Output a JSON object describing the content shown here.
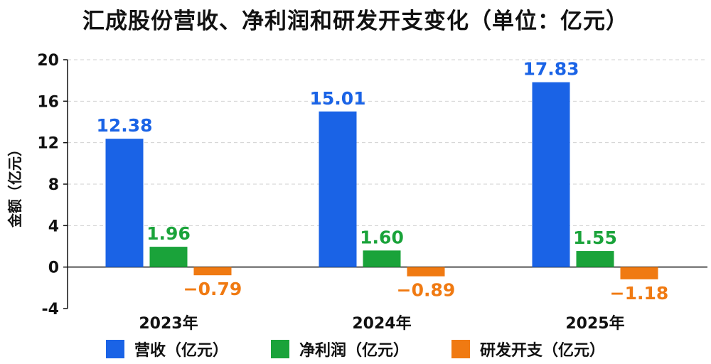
{
  "chart_data": {
    "type": "bar",
    "title": "汇成股份营收、净利润和研发开支变化（单位：亿元）",
    "ylabel": "金额（亿元）",
    "xlabel": "",
    "categories": [
      "2023年",
      "2024年",
      "2025年"
    ],
    "ylim": [
      -4,
      20
    ],
    "yticks": [
      -4,
      0,
      4,
      8,
      12,
      16,
      20
    ],
    "grid": true,
    "legend_position": "bottom",
    "series": [
      {
        "name": "营收（亿元）",
        "values": [
          12.38,
          15.01,
          17.83
        ],
        "labels": [
          "12.38",
          "15.01",
          "17.83"
        ],
        "color": "#1a63e6"
      },
      {
        "name": "净利润（亿元）",
        "values": [
          1.96,
          1.6,
          1.55
        ],
        "labels": [
          "1.96",
          "1.60",
          "1.55"
        ],
        "color": "#1aa33a"
      },
      {
        "name": "研发开支（亿元）",
        "values": [
          -0.79,
          -0.89,
          -1.18
        ],
        "labels": [
          "−0.79",
          "−0.89",
          "−1.18"
        ],
        "color": "#f07a12"
      }
    ]
  }
}
